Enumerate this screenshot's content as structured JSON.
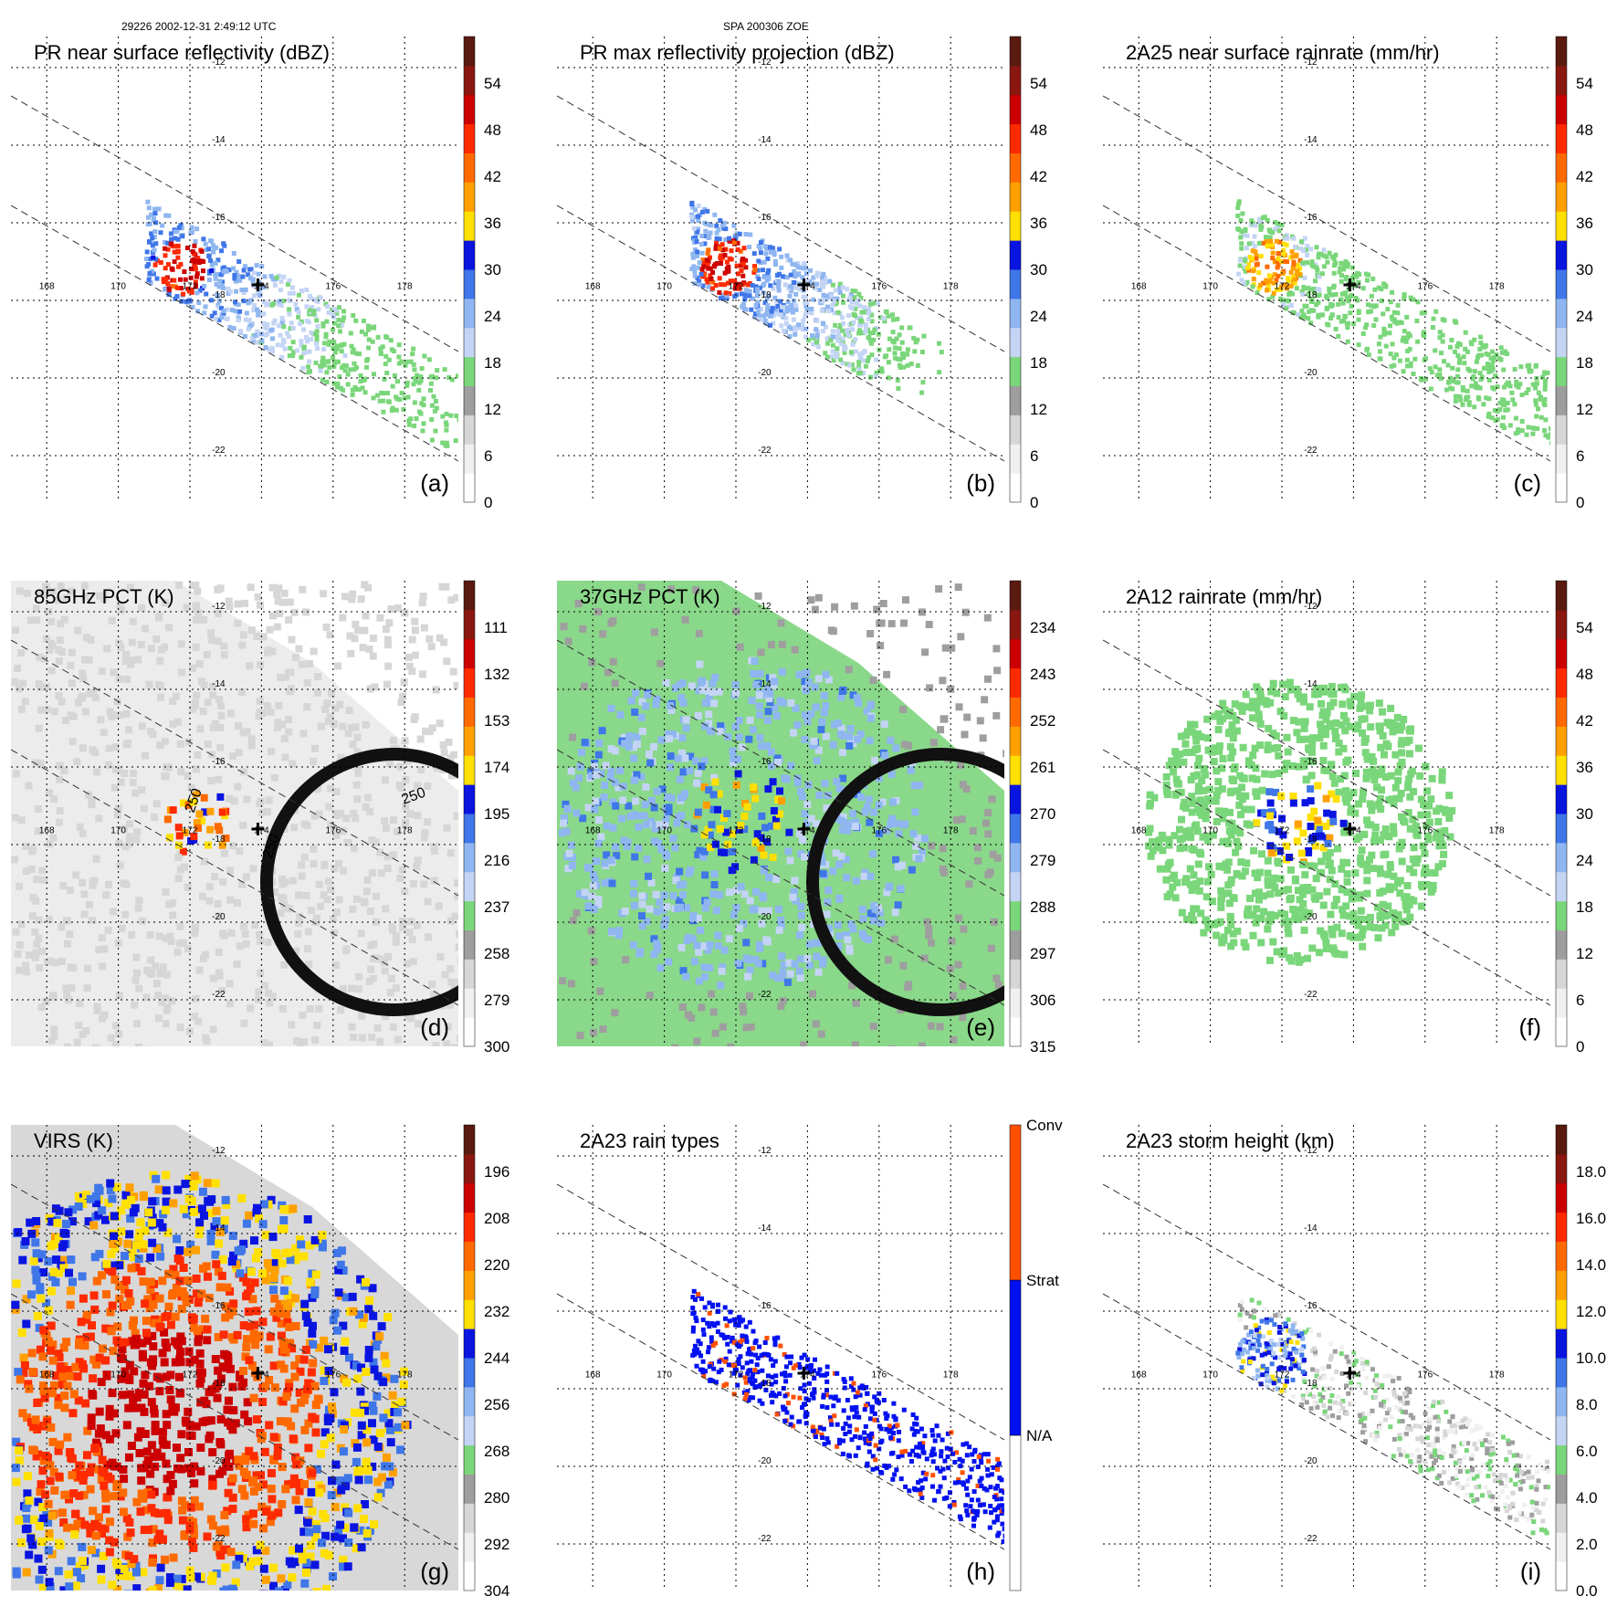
{
  "header": {
    "left": "29226 2002-12-31 2:49:12 UTC",
    "center": "SPA 200306 ZOE"
  },
  "colors": {
    "scale": [
      "#ffffff",
      "#f0f0f0",
      "#d6d6d6",
      "#9e9e9e",
      "#7ad67a",
      "#c4d4f4",
      "#8fb6f0",
      "#3f76e8",
      "#0a14e0",
      "#ffe000",
      "#ffa000",
      "#ff6a00",
      "#ff2a00",
      "#cc0000",
      "#8a1810",
      "#5a1a10"
    ],
    "rain_types": [
      "#ffffff",
      "#0010f0",
      "#ff5000"
    ]
  },
  "chart_data": [
    {
      "type": "heatmap",
      "panel_label": "(a)",
      "title": "PR near surface reflectivity (dBZ)",
      "colorbar_ticks": [
        "0",
        "6",
        "12",
        "18",
        "24",
        "30",
        "36",
        "42",
        "48",
        "54"
      ],
      "lat_ticks": [
        "-12",
        "-14",
        "-16",
        "-18",
        "-20",
        "-22"
      ],
      "lon_ticks": [
        "168",
        "170",
        "172",
        "174",
        "176",
        "178"
      ],
      "xlim": [
        167,
        179.5
      ],
      "ylim": [
        -23.2,
        -11.2
      ]
    },
    {
      "type": "heatmap",
      "panel_label": "(b)",
      "title": "PR max reflectivity projection (dBZ)",
      "colorbar_ticks": [
        "0",
        "6",
        "12",
        "18",
        "24",
        "30",
        "36",
        "42",
        "48",
        "54"
      ],
      "lat_ticks": [
        "-12",
        "-14",
        "-16",
        "-18",
        "-20",
        "-22"
      ],
      "lon_ticks": [
        "168",
        "170",
        "172",
        "174",
        "176",
        "178"
      ],
      "xlim": [
        167,
        179.5
      ],
      "ylim": [
        -23.2,
        -11.2
      ]
    },
    {
      "type": "heatmap",
      "panel_label": "(c)",
      "title": "2A25 near surface rainrate (mm/hr)",
      "colorbar_ticks": [
        "0",
        "6",
        "12",
        "18",
        "24",
        "30",
        "36",
        "42",
        "48",
        "54"
      ],
      "lat_ticks": [
        "-12",
        "-14",
        "-16",
        "-18",
        "-20",
        "-22"
      ],
      "lon_ticks": [
        "168",
        "170",
        "172",
        "174",
        "176",
        "178"
      ],
      "xlim": [
        167,
        179.5
      ],
      "ylim": [
        -23.2,
        -11.2
      ]
    },
    {
      "type": "heatmap",
      "panel_label": "(d)",
      "title": "85GHz PCT (K)",
      "colorbar_ticks": [
        "300",
        "279",
        "258",
        "237",
        "216",
        "195",
        "174",
        "153",
        "132",
        "111"
      ],
      "contour_labels": [
        "250",
        "250",
        "250"
      ],
      "lat_ticks": [
        "-12",
        "-14",
        "-16",
        "-18",
        "-20",
        "-22"
      ],
      "lon_ticks": [
        "168",
        "170",
        "172",
        "174",
        "176",
        "178"
      ],
      "xlim": [
        167,
        179.5
      ],
      "ylim": [
        -23.2,
        -11.2
      ]
    },
    {
      "type": "heatmap",
      "panel_label": "(e)",
      "title": "37GHz PCT (K)",
      "colorbar_ticks": [
        "315",
        "306",
        "297",
        "288",
        "279",
        "270",
        "261",
        "252",
        "243",
        "234"
      ],
      "lat_ticks": [
        "-12",
        "-14",
        "-16",
        "-18",
        "-20",
        "-22"
      ],
      "lon_ticks": [
        "168",
        "170",
        "172",
        "174",
        "176",
        "178"
      ],
      "xlim": [
        167,
        179.5
      ],
      "ylim": [
        -23.2,
        -11.2
      ]
    },
    {
      "type": "heatmap",
      "panel_label": "(f)",
      "title": "2A12 rainrate (mm/hr)",
      "colorbar_ticks": [
        "0",
        "6",
        "12",
        "18",
        "24",
        "30",
        "36",
        "42",
        "48",
        "54"
      ],
      "lat_ticks": [
        "-12",
        "-14",
        "-16",
        "-18",
        "-20",
        "-22"
      ],
      "lon_ticks": [
        "168",
        "170",
        "172",
        "174",
        "176",
        "178"
      ],
      "xlim": [
        167,
        179.5
      ],
      "ylim": [
        -23.2,
        -11.2
      ]
    },
    {
      "type": "heatmap",
      "panel_label": "(g)",
      "title": "VIRS (K)",
      "colorbar_ticks": [
        "304",
        "292",
        "280",
        "268",
        "256",
        "244",
        "232",
        "220",
        "208",
        "196"
      ],
      "lat_ticks": [
        "-12",
        "-14",
        "-16",
        "-18",
        "-20",
        "-22"
      ],
      "lon_ticks": [
        "168",
        "170",
        "172",
        "174",
        "176",
        "178"
      ],
      "xlim": [
        167,
        179.5
      ],
      "ylim": [
        -23.2,
        -11.2
      ]
    },
    {
      "type": "heatmap",
      "panel_label": "(h)",
      "title": "2A23 rain types",
      "colorbar_ticks": [
        "N/A",
        "Strat",
        "Conv"
      ],
      "lat_ticks": [
        "-12",
        "-14",
        "-16",
        "-18",
        "-20",
        "-22"
      ],
      "lon_ticks": [
        "168",
        "170",
        "172",
        "174",
        "176",
        "178"
      ],
      "xlim": [
        167,
        179.5
      ],
      "ylim": [
        -23.2,
        -11.2
      ]
    },
    {
      "type": "heatmap",
      "panel_label": "(i)",
      "title": "2A23 storm height (km)",
      "colorbar_ticks": [
        "0.0",
        "2.0",
        "4.0",
        "6.0",
        "8.0",
        "10.0",
        "12.0",
        "14.0",
        "16.0",
        "18.0"
      ],
      "lat_ticks": [
        "-12",
        "-14",
        "-16",
        "-18",
        "-20",
        "-22"
      ],
      "lon_ticks": [
        "168",
        "170",
        "172",
        "174",
        "176",
        "178"
      ],
      "xlim": [
        167,
        179.5
      ],
      "ylim": [
        -23.2,
        -11.2
      ]
    }
  ]
}
